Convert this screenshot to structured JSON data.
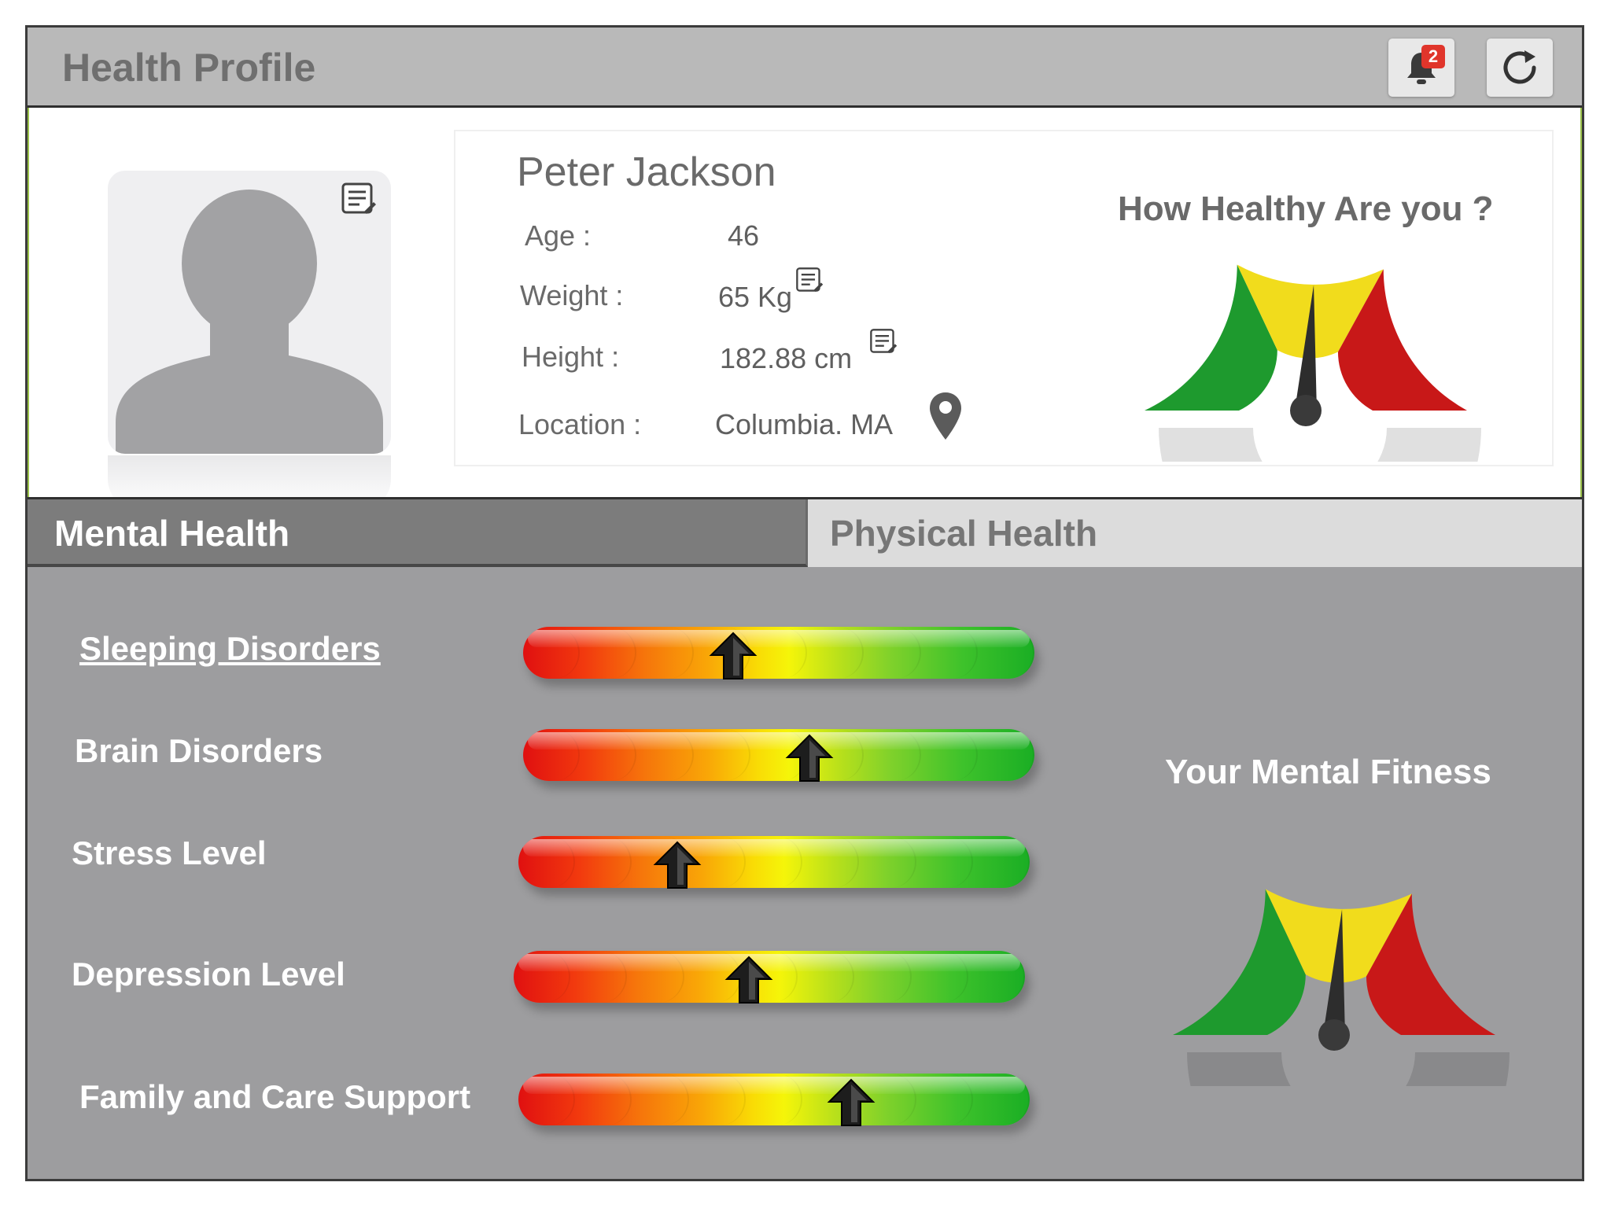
{
  "header": {
    "title": "Health Profile",
    "notification_count": "2"
  },
  "profile": {
    "name": "Peter Jackson",
    "fields": [
      {
        "label": "Age :",
        "value": "46"
      },
      {
        "label": "Weight :",
        "value": "65 Kg"
      },
      {
        "label": "Height :",
        "value": "182.88 cm"
      },
      {
        "label": "Location :",
        "value": "Columbia. MA"
      }
    ],
    "gauge_title": "How Healthy Are you ?",
    "gauge_level": 0.52
  },
  "tabs": [
    {
      "label": "Mental Health",
      "active": true
    },
    {
      "label": "Physical Health",
      "active": false
    }
  ],
  "mental": {
    "metrics": [
      {
        "label": "Sleeping Disorders",
        "level": 0.41
      },
      {
        "label": "Brain Disorders",
        "level": 0.56
      },
      {
        "label": "Stress Level",
        "level": 0.31
      },
      {
        "label": "Depression Level",
        "level": 0.46
      },
      {
        "label": "Family and Care Support",
        "level": 0.65
      }
    ],
    "fitness_title": "Your Mental Fitness",
    "fitness_level": 0.52
  },
  "colors": {
    "gauge_green": "#1e9a2e",
    "gauge_yellow": "#f1dc1c",
    "gauge_red": "#c81818",
    "badge": "#e0352b"
  }
}
